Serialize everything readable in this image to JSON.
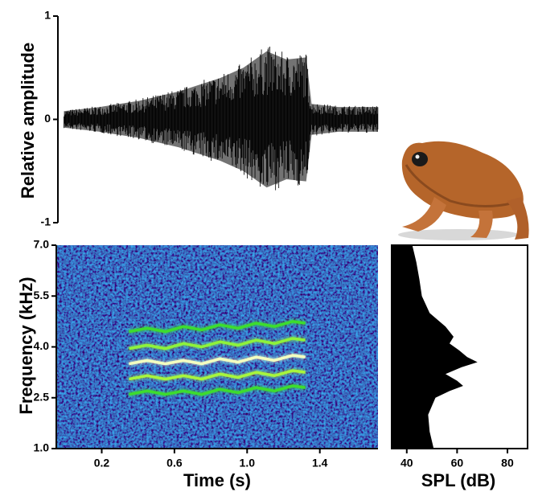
{
  "chart_data": [
    {
      "type": "waveform",
      "ylabel": "Relative amplitude",
      "x": [
        -0.03,
        0.17,
        0.39,
        0.61,
        0.84,
        0.97,
        1.1,
        1.21,
        1.32,
        1.35,
        1.5,
        1.72
      ],
      "values": [
        0.08,
        0.12,
        0.18,
        0.27,
        0.4,
        0.5,
        0.66,
        0.58,
        0.6,
        0.15,
        0.12,
        0.12
      ],
      "color": "#000000",
      "xlim": [
        -0.05,
        1.72
      ],
      "ylim": [
        -1,
        1
      ],
      "yticks": [
        -1,
        0,
        1
      ]
    },
    {
      "type": "spectrogram",
      "xlabel": "Time (s)",
      "ylabel": "Frequency (kHz)",
      "x": [
        0.35,
        0.45,
        0.55,
        0.65,
        0.75,
        0.85,
        0.95,
        1.05,
        1.15,
        1.25,
        1.32
      ],
      "series": [
        {
          "color": "#3ddc2e",
          "values": [
            4.45,
            4.55,
            4.45,
            4.6,
            4.5,
            4.65,
            4.55,
            4.7,
            4.6,
            4.75,
            4.7
          ]
        },
        {
          "color": "#8ef23a",
          "values": [
            3.95,
            4.05,
            3.95,
            4.1,
            4.0,
            4.15,
            4.05,
            4.2,
            4.1,
            4.25,
            4.2
          ]
        },
        {
          "color": "#f4ffc0",
          "values": [
            3.5,
            3.6,
            3.5,
            3.6,
            3.5,
            3.65,
            3.55,
            3.7,
            3.6,
            3.75,
            3.7
          ]
        },
        {
          "color": "#a8f53e",
          "values": [
            3.05,
            3.15,
            3.05,
            3.15,
            3.05,
            3.2,
            3.1,
            3.25,
            3.15,
            3.3,
            3.25
          ]
        },
        {
          "color": "#3ddc2e",
          "values": [
            2.6,
            2.7,
            2.6,
            2.7,
            2.6,
            2.75,
            2.65,
            2.8,
            2.7,
            2.85,
            2.8
          ]
        }
      ],
      "xlim": [
        -0.05,
        1.72
      ],
      "xticks": [
        0.2,
        0.6,
        {
          "value": 1.0,
          "label": "1.0"
        },
        1.4
      ],
      "ylim": [
        1,
        7
      ],
      "yticks": [
        {
          "value": 1.0,
          "label": "1.0"
        },
        2.5,
        {
          "value": 4.0,
          "label": "4.0"
        },
        5.5,
        {
          "value": 7.0,
          "label": "7.0"
        }
      ]
    },
    {
      "type": "spectrum",
      "xlabel": "SPL (dB)",
      "y": [
        7.0,
        6.5,
        6.0,
        5.5,
        5.0,
        4.6,
        4.3,
        4.1,
        3.9,
        3.7,
        3.55,
        3.4,
        3.2,
        3.0,
        2.85,
        2.7,
        2.5,
        2.0,
        1.5,
        1.0
      ],
      "values": [
        42.2,
        43.8,
        45.0,
        46.0,
        49.1,
        55.4,
        58.6,
        57.0,
        60.8,
        64.0,
        68.1,
        61.8,
        55.4,
        60.0,
        62.4,
        57.0,
        51.4,
        48.5,
        49.1,
        50.7
      ],
      "color": "#000000",
      "xlim": [
        34,
        88
      ],
      "xticks": [
        40,
        60,
        80
      ],
      "ylim": [
        1,
        7
      ]
    }
  ]
}
